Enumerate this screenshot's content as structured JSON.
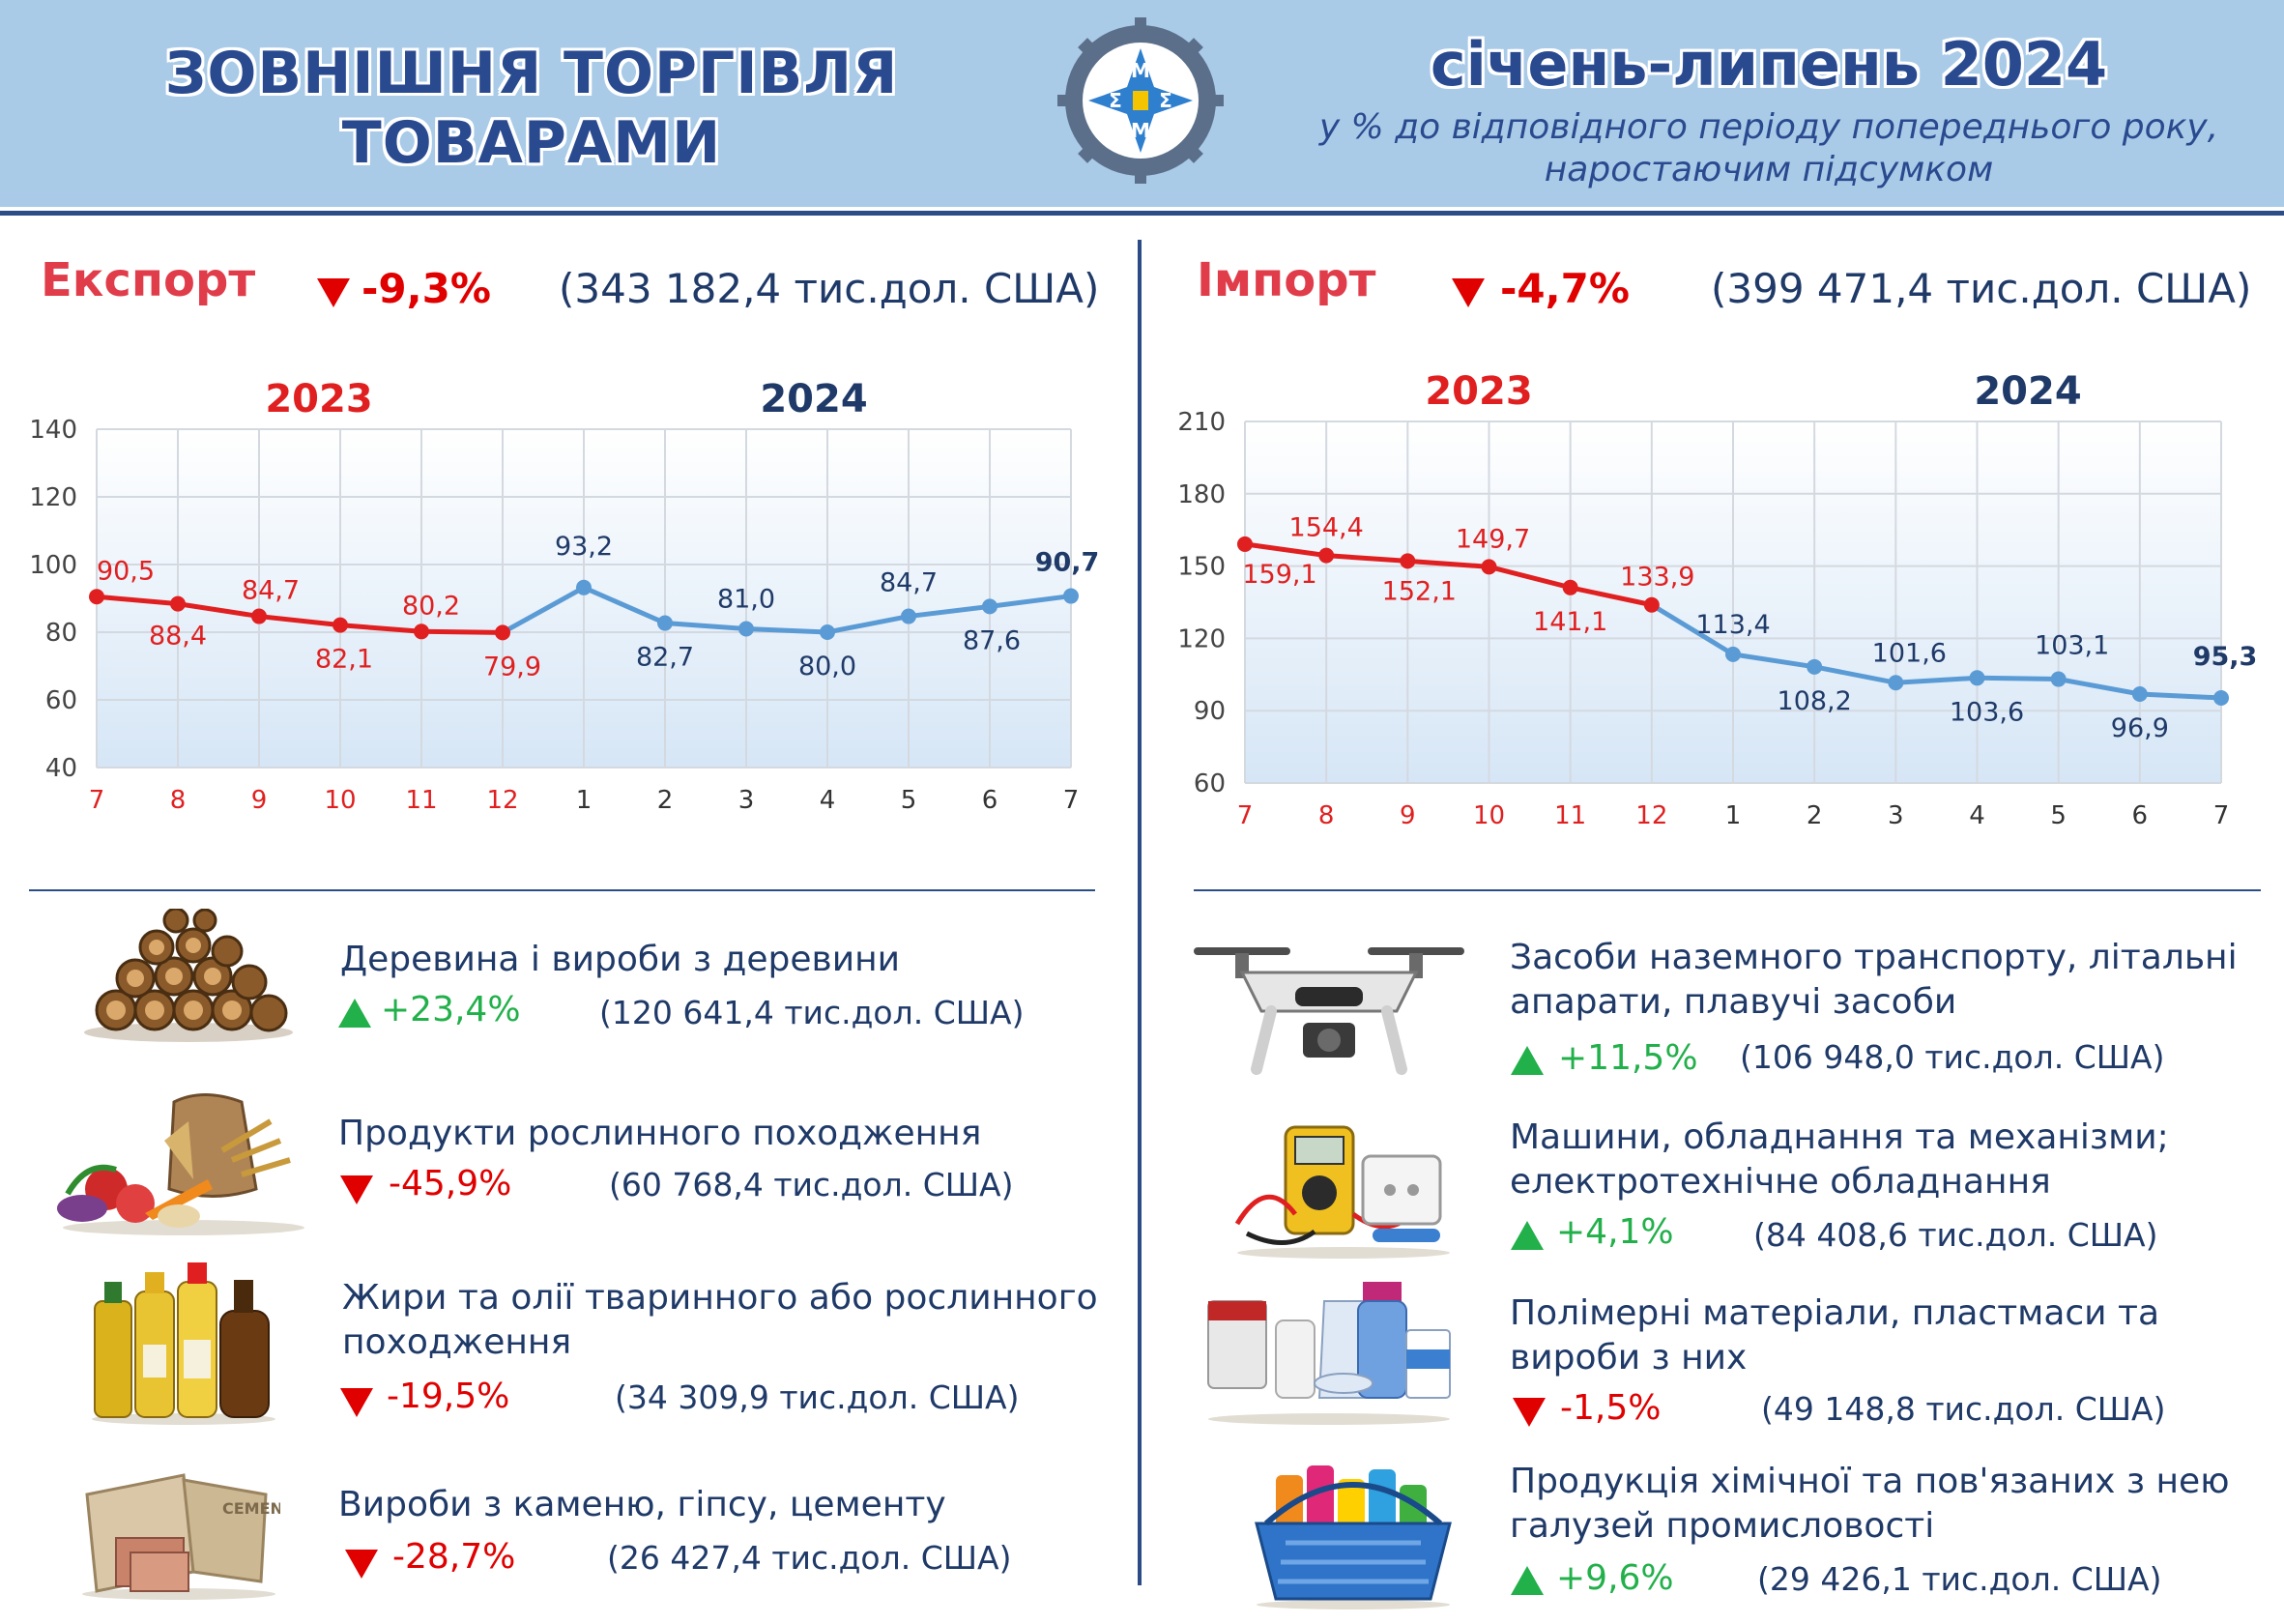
{
  "header": {
    "title_line1": "ЗОВНІШНЯ ТОРГІВЛЯ",
    "title_line2": "ТОВАРАМИ",
    "period": "січень-липень 2024",
    "subtitle_line1": "у % до відповідного періоду попереднього року,",
    "subtitle_line2": "наростаючим підсумком",
    "logo_letters": [
      "М",
      "Σ",
      "Σ",
      "М"
    ]
  },
  "export": {
    "title": "Експорт",
    "change": "-9,3%",
    "total": "(343 182,4 тис.дол. США)",
    "items": [
      {
        "title": "Деревина і вироби з деревини",
        "change": "+23,4%",
        "direction": "up",
        "value": "(120 641,4 тис.дол. США)",
        "icon": "firewood-icon"
      },
      {
        "title": "Продукти рослинного походження",
        "change": "-45,9%",
        "direction": "down",
        "value": "(60 768,4 тис.дол. США)",
        "icon": "grain-vegetables-icon"
      },
      {
        "title_line1": "Жири та олії тваринного або рослинного",
        "title_line2": "походження",
        "change": "-19,5%",
        "direction": "down",
        "value": "(34 309,9 тис.дол. США)",
        "icon": "oil-bottles-icon"
      },
      {
        "title": "Вироби з каменю, гіпсу, цементу",
        "change": "-28,7%",
        "direction": "down",
        "value": "(26 427,4 тис.дол. США)",
        "icon": "cement-bags-icon"
      }
    ]
  },
  "import": {
    "title": "Імпорт",
    "change": "-4,7%",
    "total": "(399 471,4 тис.дол. США)",
    "items": [
      {
        "title_line1": "Засоби наземного транспорту, літальні",
        "title_line2": "апарати, плавучі засоби",
        "change": "+11,5%",
        "direction": "up",
        "value": "(106 948,0 тис.дол. США)",
        "icon": "drone-icon"
      },
      {
        "title_line1": "Машини, обладнання та механізми;",
        "title_line2": "електротехнічне обладнання",
        "change": "+4,1%",
        "direction": "up",
        "value": "(84 408,6 тис.дол. США)",
        "icon": "multimeter-icon"
      },
      {
        "title_line1": "Полімерні матеріали, пластмаси та",
        "title_line2": "вироби з них",
        "change": "-1,5%",
        "direction": "down",
        "value": "(49 148,8 тис.дол. США)",
        "icon": "plastic-containers-icon"
      },
      {
        "title_line1": "Продукція хімічної та пов'язаних з нею",
        "title_line2": "галузей промисловості",
        "change": "+9,6%",
        "direction": "up",
        "value": "(29 426,1 тис.дол. США)",
        "icon": "cleaning-basket-icon"
      }
    ]
  },
  "colors": {
    "series_2023": "#e02020",
    "series_2024": "#5b9bd5",
    "up": "#22b04a",
    "down": "#e00000",
    "header_bg": "#a9cbe8",
    "navy": "#1f3a68"
  },
  "chart_data": [
    {
      "type": "line",
      "categories": [
        "7",
        "8",
        "9",
        "10",
        "11",
        "12",
        "1",
        "2",
        "3",
        "4",
        "5",
        "6",
        "7"
      ],
      "ylim": [
        40,
        140
      ],
      "yticks": [
        40,
        60,
        80,
        100,
        120,
        140
      ],
      "grid": true,
      "series": [
        {
          "name": "2023",
          "values": [
            90.5,
            88.4,
            84.7,
            82.1,
            80.2,
            79.9,
            null,
            null,
            null,
            null,
            null,
            null,
            null
          ]
        },
        {
          "name": "2024",
          "values": [
            null,
            null,
            null,
            null,
            null,
            79.9,
            93.2,
            82.7,
            81.0,
            80.0,
            84.7,
            87.6,
            90.7
          ]
        }
      ],
      "point_labels": [
        "90,5",
        "88,4",
        "84,7",
        "82,1",
        "80,2",
        "79,9",
        "93,2",
        "82,7",
        "81,0",
        "80,0",
        "84,7",
        "87,6",
        "90,7"
      ]
    },
    {
      "type": "line",
      "categories": [
        "7",
        "8",
        "9",
        "10",
        "11",
        "12",
        "1",
        "2",
        "3",
        "4",
        "5",
        "6",
        "7"
      ],
      "ylim": [
        60,
        210
      ],
      "yticks": [
        60,
        90,
        120,
        150,
        180,
        210
      ],
      "grid": true,
      "series": [
        {
          "name": "2023",
          "values": [
            159.1,
            154.4,
            152.1,
            149.7,
            141.1,
            133.9,
            null,
            null,
            null,
            null,
            null,
            null,
            null
          ]
        },
        {
          "name": "2024",
          "values": [
            null,
            null,
            null,
            null,
            null,
            133.9,
            113.4,
            108.2,
            101.6,
            103.6,
            103.1,
            96.9,
            95.3
          ]
        }
      ],
      "point_labels": [
        "159,1",
        "154,4",
        "152,1",
        "149,7",
        "141,1",
        "133,9",
        "113,4",
        "108,2",
        "101,6",
        "103,6",
        "103,1",
        "96,9",
        "95,3"
      ]
    }
  ]
}
